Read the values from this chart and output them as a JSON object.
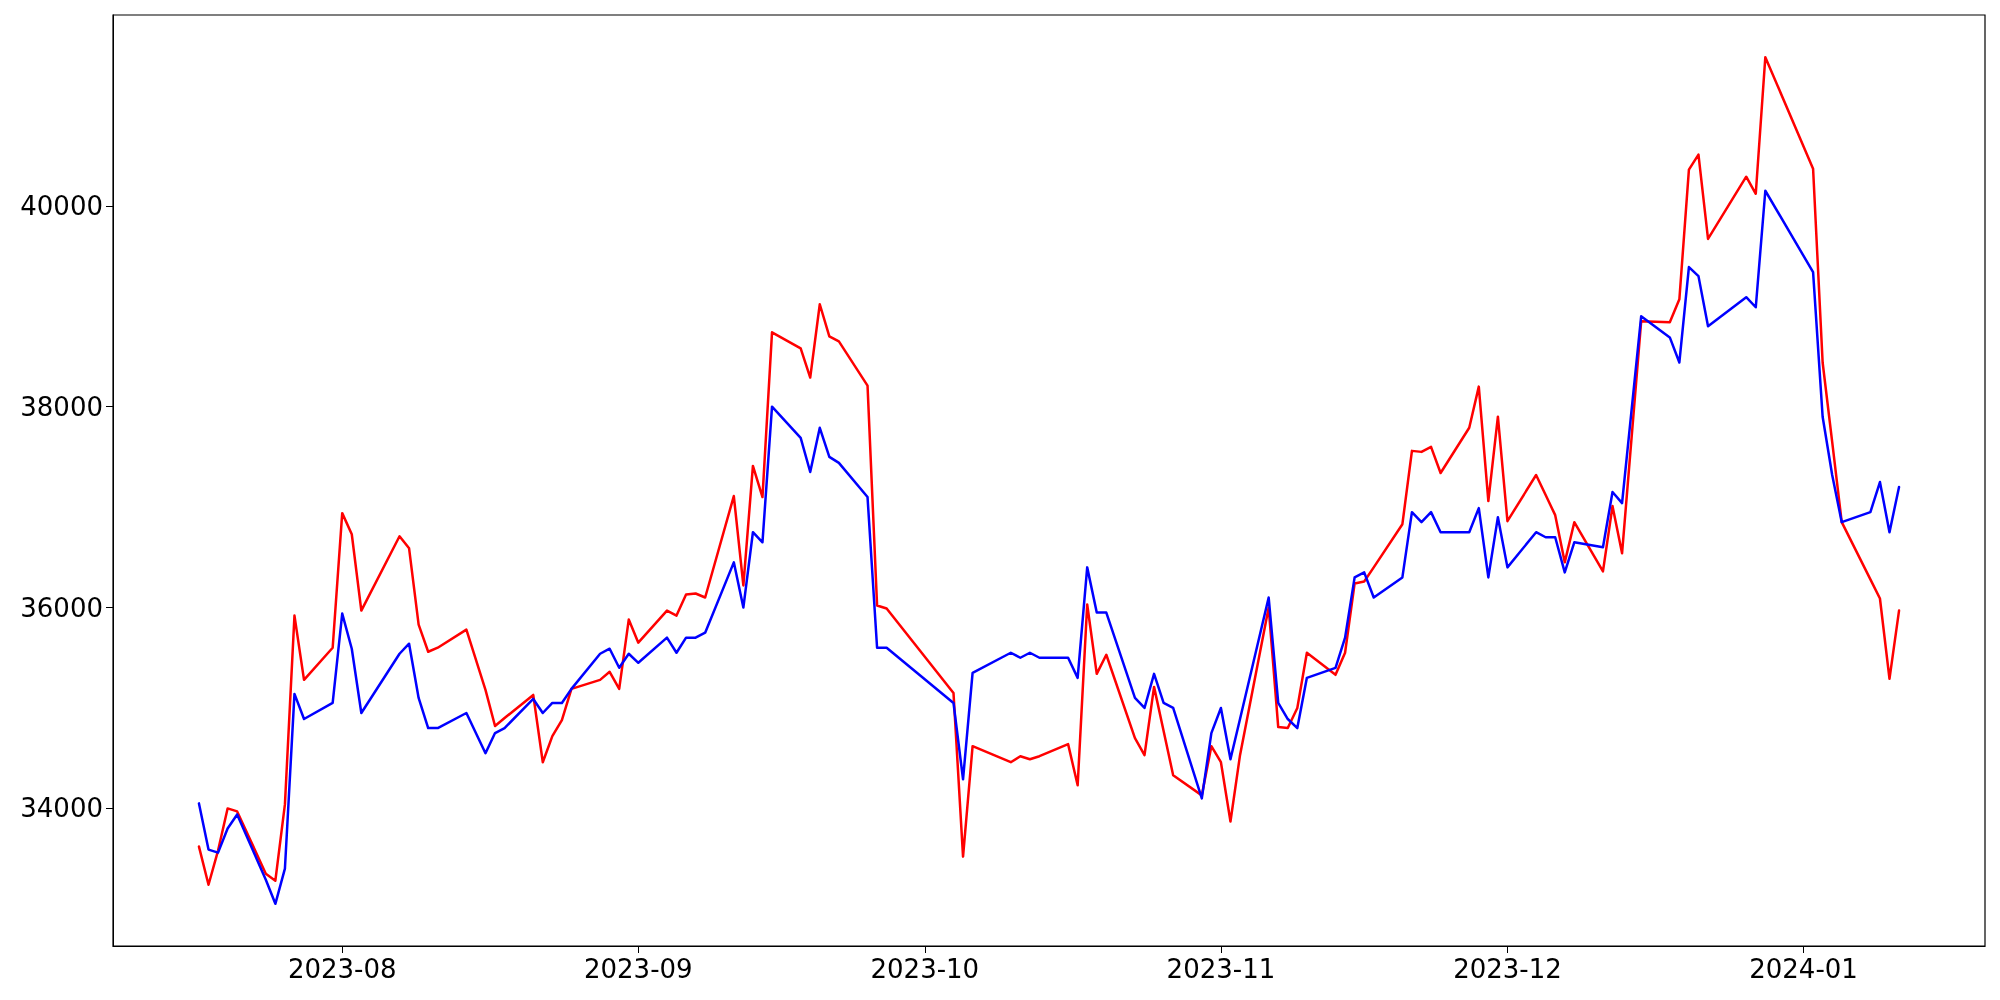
{
  "chart_data": {
    "type": "line",
    "x": [
      "2023-07-17",
      "2023-07-18",
      "2023-07-19",
      "2023-07-20",
      "2023-07-21",
      "2023-07-24",
      "2023-07-25",
      "2023-07-26",
      "2023-07-27",
      "2023-07-28",
      "2023-07-31",
      "2023-08-01",
      "2023-08-02",
      "2023-08-03",
      "2023-08-07",
      "2023-08-08",
      "2023-08-09",
      "2023-08-10",
      "2023-08-11",
      "2023-08-14",
      "2023-08-16",
      "2023-08-17",
      "2023-08-18",
      "2023-08-21",
      "2023-08-22",
      "2023-08-23",
      "2023-08-24",
      "2023-08-25",
      "2023-08-28",
      "2023-08-29",
      "2023-08-30",
      "2023-08-31",
      "2023-09-01",
      "2023-09-04",
      "2023-09-05",
      "2023-09-06",
      "2023-09-07",
      "2023-09-08",
      "2023-09-11",
      "2023-09-12",
      "2023-09-13",
      "2023-09-14",
      "2023-09-15",
      "2023-09-18",
      "2023-09-19",
      "2023-09-20",
      "2023-09-21",
      "2023-09-22",
      "2023-09-25",
      "2023-09-26",
      "2023-09-27",
      "2023-10-04",
      "2023-10-05",
      "2023-10-06",
      "2023-10-10",
      "2023-10-11",
      "2023-10-12",
      "2023-10-13",
      "2023-10-16",
      "2023-10-17",
      "2023-10-18",
      "2023-10-19",
      "2023-10-20",
      "2023-10-23",
      "2023-10-24",
      "2023-10-25",
      "2023-10-26",
      "2023-10-27",
      "2023-10-30",
      "2023-10-31",
      "2023-11-01",
      "2023-11-02",
      "2023-11-03",
      "2023-11-06",
      "2023-11-07",
      "2023-11-08",
      "2023-11-09",
      "2023-11-10",
      "2023-11-13",
      "2023-11-14",
      "2023-11-15",
      "2023-11-16",
      "2023-11-17",
      "2023-11-20",
      "2023-11-21",
      "2023-11-22",
      "2023-11-23",
      "2023-11-24",
      "2023-11-27",
      "2023-11-28",
      "2023-11-29",
      "2023-11-30",
      "2023-12-01",
      "2023-12-04",
      "2023-12-05",
      "2023-12-06",
      "2023-12-07",
      "2023-12-08",
      "2023-12-11",
      "2023-12-12",
      "2023-12-13",
      "2023-12-15",
      "2023-12-18",
      "2023-12-19",
      "2023-12-20",
      "2023-12-21",
      "2023-12-22",
      "2023-12-26",
      "2023-12-27",
      "2023-12-28",
      "2024-01-02",
      "2024-01-03",
      "2024-01-04",
      "2024-01-05",
      "2024-01-08",
      "2024-01-09",
      "2024-01-10",
      "2024-01-11"
    ],
    "series": [
      {
        "color": "#ff0000",
        "values": [
          33620,
          33240,
          33580,
          34000,
          33970,
          33350,
          33280,
          34040,
          35920,
          35280,
          35600,
          36940,
          36730,
          35970,
          36710,
          36590,
          35830,
          35560,
          35600,
          35780,
          35180,
          34820,
          34900,
          35130,
          34460,
          34720,
          34880,
          35190,
          35280,
          35360,
          35190,
          35880,
          35650,
          35970,
          35920,
          36130,
          36140,
          36100,
          37110,
          36220,
          37410,
          37100,
          38740,
          38580,
          38290,
          39020,
          38700,
          38650,
          38210,
          36020,
          35990,
          35150,
          33520,
          34620,
          34460,
          34520,
          34490,
          34520,
          34640,
          34230,
          36030,
          35340,
          35530,
          34700,
          34530,
          35210,
          34770,
          34330,
          34130,
          34620,
          34460,
          33870,
          34530,
          36000,
          34810,
          34800,
          35000,
          35550,
          35330,
          35550,
          36240,
          36260,
          36400,
          36830,
          37560,
          37550,
          37600,
          37340,
          37790,
          38200,
          37060,
          37900,
          36860,
          37320,
          37120,
          36920,
          36450,
          36850,
          36360,
          37010,
          36540,
          38850,
          38840,
          39070,
          40360,
          40510,
          39670,
          40290,
          40120,
          41480,
          40370,
          38440,
          37650,
          36850,
          36280,
          36090,
          35290,
          35970
        ]
      },
      {
        "color": "#0000ff",
        "values": [
          34050,
          33590,
          33560,
          33800,
          33940,
          33290,
          33050,
          33400,
          35140,
          34890,
          35050,
          35940,
          35590,
          34950,
          35540,
          35640,
          35100,
          34800,
          34800,
          34950,
          34550,
          34750,
          34800,
          35090,
          34950,
          35050,
          35050,
          35190,
          35540,
          35590,
          35400,
          35540,
          35450,
          35700,
          35550,
          35700,
          35700,
          35750,
          36450,
          36000,
          36750,
          36650,
          38000,
          37690,
          37350,
          37790,
          37500,
          37440,
          37100,
          35600,
          35600,
          35050,
          34290,
          35350,
          35550,
          35500,
          35550,
          35500,
          35500,
          35300,
          36400,
          35950,
          35950,
          35100,
          35000,
          35340,
          35050,
          35000,
          34100,
          34750,
          35000,
          34490,
          34890,
          36100,
          35050,
          34890,
          34800,
          35300,
          35400,
          35700,
          36300,
          36350,
          36100,
          36300,
          36950,
          36850,
          36950,
          36750,
          36750,
          36990,
          36300,
          36900,
          36400,
          36750,
          36700,
          36700,
          36350,
          36650,
          36600,
          37150,
          37040,
          38900,
          38690,
          38440,
          39390,
          39300,
          38800,
          39090,
          38990,
          40150,
          39340,
          37900,
          37320,
          36850,
          36950,
          37250,
          36750,
          37200
        ]
      }
    ],
    "xlim": [
      "2023-07-08",
      "2024-01-20"
    ],
    "xticks": [
      "2023-08",
      "2023-09",
      "2023-10",
      "2023-11",
      "2023-12",
      "2024-01"
    ],
    "ylim": [
      32630,
      41900
    ],
    "yticks": [
      34000,
      36000,
      38000,
      40000
    ],
    "grid": false,
    "marker": "none",
    "line_style": "solid"
  }
}
